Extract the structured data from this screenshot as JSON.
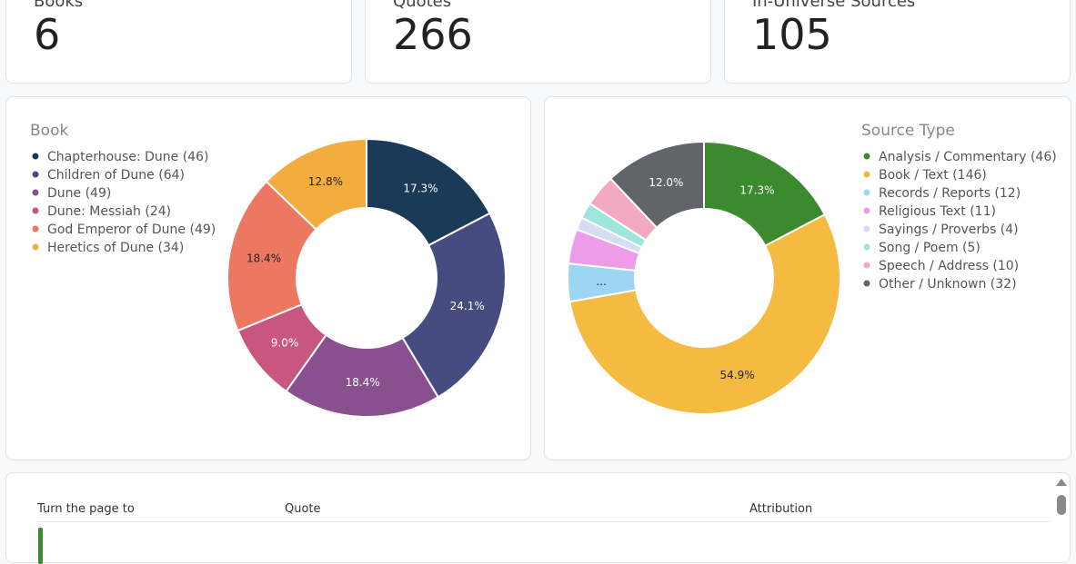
{
  "stats": [
    {
      "label": "Books",
      "value": 6
    },
    {
      "label": "Quotes",
      "value": 266
    },
    {
      "label": "In-Universe Sources",
      "value": 105
    }
  ],
  "chart_data": [
    {
      "type": "donut",
      "title": "Book",
      "categories": [
        "Chapterhouse: Dune",
        "Children of Dune",
        "Dune",
        "Dune: Messiah",
        "God Emperor of Dune",
        "Heretics of Dune"
      ],
      "legend_labels": [
        "Chapterhouse: Dune (46)",
        "Children of Dune (64)",
        "Dune (49)",
        "Dune: Messiah (24)",
        "God Emperor of Dune (49)",
        "Heretics of Dune (34)"
      ],
      "values": [
        17.3,
        24.1,
        18.4,
        9.0,
        18.4,
        12.8
      ],
      "value_labels": [
        "17.3%",
        "24.1%",
        "18.4%",
        "9.0%",
        "18.4%",
        "12.8%"
      ],
      "colors": [
        "#1b3a57",
        "#464c80",
        "#8a4f8f",
        "#c8577f",
        "#ec7861",
        "#f2ac3f"
      ]
    },
    {
      "type": "donut",
      "title": "Source Type",
      "categories": [
        "Analysis / Commentary",
        "Book / Text",
        "Records / Reports",
        "Religious Text",
        "Sayings / Proverbs",
        "Song / Poem",
        "Speech / Address",
        "Other / Unknown"
      ],
      "legend_labels": [
        "Analysis / Commentary (46)",
        "Book / Text (146)",
        "Records / Reports (12)",
        "Religious Text (11)",
        "Sayings / Proverbs (4)",
        "Song / Poem (5)",
        "Speech / Address (10)",
        "Other / Unknown (32)"
      ],
      "values": [
        17.3,
        54.9,
        4.5,
        4.1,
        1.5,
        1.9,
        3.8,
        12.0
      ],
      "value_labels": [
        "17.3%",
        "54.9%",
        "...",
        null,
        null,
        null,
        null,
        "12.0%"
      ],
      "colors": [
        "#3b8a2e",
        "#f4bb40",
        "#9dd5f5",
        "#ec9ce8",
        "#d6dcf5",
        "#9de6db",
        "#f2a9c2",
        "#61646b"
      ]
    }
  ],
  "table": {
    "columns": [
      "Turn the page to",
      "Quote",
      "Attribution"
    ]
  }
}
